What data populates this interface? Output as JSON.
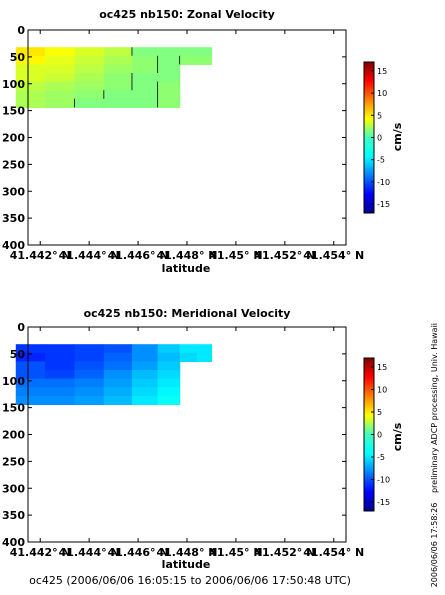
{
  "chart_data": [
    {
      "type": "heatmap",
      "title": "oc425 nb150: Zonal Velocity",
      "xlabel": "latitude",
      "ylabel": "",
      "x_ticks": [
        "41.442° N",
        "41.444° N",
        "41.446° N",
        "41.448° N",
        "41.45° N",
        "41.452° N",
        "41.454° N"
      ],
      "x_range": [
        41.4415,
        41.4545
      ],
      "y_ticks": [
        "0",
        "50",
        "100",
        "150",
        "200",
        "250",
        "300",
        "350",
        "400"
      ],
      "y_range": [
        0,
        400
      ],
      "y_inverted": true,
      "colorbar": {
        "label": "cm/s",
        "ticks": [
          "-15",
          "-10",
          "-5",
          "0",
          "5",
          "10",
          "15"
        ],
        "range": [
          -17,
          17
        ],
        "colormap": "jet"
      },
      "field": {
        "lat": [
          41.4416,
          41.4428,
          41.444,
          41.4452,
          41.4463,
          41.4473,
          41.4481,
          41.4487
        ],
        "depth": [
          40,
          56,
          72,
          88,
          104,
          120,
          136
        ],
        "values_cm_s": [
          [
            5.0,
            4.0,
            3.0,
            2.0,
            0.0,
            0.0,
            0.0,
            0.0
          ],
          [
            4.5,
            3.5,
            2.5,
            1.5,
            0.5,
            0.0,
            0.5,
            0.5
          ],
          [
            3.0,
            3.0,
            2.0,
            1.0,
            0.5,
            0.0,
            null,
            null
          ],
          [
            3.0,
            2.5,
            1.5,
            0.5,
            0.0,
            0.0,
            null,
            null
          ],
          [
            2.0,
            1.5,
            1.0,
            0.5,
            0.0,
            0.5,
            null,
            null
          ],
          [
            1.5,
            1.0,
            0.5,
            0.0,
            0.0,
            0.5,
            null,
            null
          ],
          [
            1.5,
            1.0,
            0.0,
            0.0,
            0.0,
            0.5,
            null,
            null
          ]
        ]
      }
    },
    {
      "type": "heatmap",
      "title": "oc425 nb150: Meridional Velocity",
      "xlabel": "latitude",
      "ylabel": "",
      "x_ticks": [
        "41.442° N",
        "41.444° N",
        "41.446° N",
        "41.448° N",
        "41.45° N",
        "41.452° N",
        "41.454° N"
      ],
      "x_range": [
        41.4415,
        41.4545
      ],
      "y_ticks": [
        "0",
        "50",
        "100",
        "150",
        "200",
        "250",
        "300",
        "350",
        "400"
      ],
      "y_range": [
        0,
        400
      ],
      "y_inverted": true,
      "colorbar": {
        "label": "cm/s",
        "ticks": [
          "-15",
          "-10",
          "-5",
          "0",
          "5",
          "10",
          "15"
        ],
        "range": [
          -17,
          17
        ],
        "colormap": "jet"
      },
      "field": {
        "lat": [
          41.4416,
          41.4428,
          41.444,
          41.4452,
          41.4463,
          41.4473,
          41.4481,
          41.4487
        ],
        "depth": [
          40,
          56,
          72,
          88,
          104,
          120,
          136
        ],
        "values_cm_s": [
          [
            -11.0,
            -11.0,
            -10.5,
            -10.0,
            -8.0,
            -6.0,
            -5.0,
            -5.0
          ],
          [
            -11.5,
            -11.0,
            -10.5,
            -9.5,
            -8.0,
            -6.5,
            -5.5,
            -5.0
          ],
          [
            -10.0,
            -11.0,
            -10.0,
            -9.0,
            -7.5,
            -6.0,
            null,
            null
          ],
          [
            -10.0,
            -10.5,
            -9.5,
            -8.0,
            -6.5,
            -5.5,
            null,
            null
          ],
          [
            -9.0,
            -9.0,
            -8.5,
            -7.5,
            -6.0,
            -5.0,
            null,
            null
          ],
          [
            -8.5,
            -8.5,
            -8.0,
            -7.0,
            -5.5,
            -4.5,
            null,
            null
          ],
          [
            -8.0,
            -8.0,
            -7.5,
            -6.5,
            -5.0,
            -4.0,
            null,
            null
          ]
        ]
      }
    }
  ],
  "side_note": "preliminary ADCP processing,  Univ. Hawaii",
  "timestamp": "2006/06/06 17:58:26",
  "footer": "oc425 (2006/06/06 16:05:15 to 2006/06/06 17:50:48 UTC)"
}
